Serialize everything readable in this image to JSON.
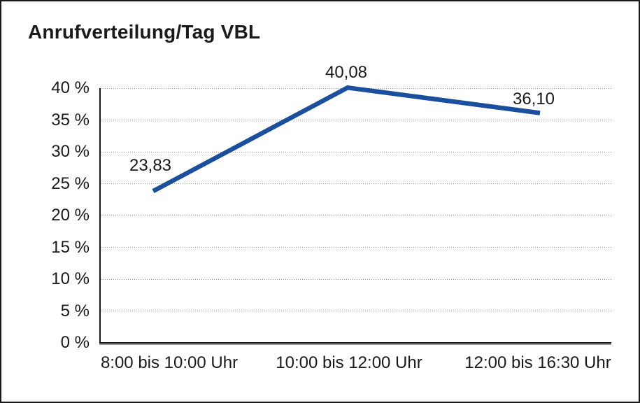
{
  "chart_data": {
    "type": "line",
    "title": "Anrufverteilung/Tag VBL",
    "categories": [
      "8:00 bis 10:00 Uhr",
      "10:00 bis 12:00 Uhr",
      "12:00 bis 16:30 Uhr"
    ],
    "values": [
      23.83,
      40.08,
      36.1
    ],
    "data_labels": [
      "23,83",
      "40,08",
      "36,10"
    ],
    "xlabel": "",
    "ylabel": "",
    "ylim": [
      0,
      40
    ],
    "ytick_step": 5,
    "ytick_labels": [
      "0 %",
      "5 %",
      "10 %",
      "15 %",
      "20 %",
      "25 %",
      "30 %",
      "35 %",
      "40 %"
    ],
    "grid": "horizontal dotted gridlines at every 5% tick",
    "legend_position": "none",
    "line_color": "#1A4F9E",
    "axis_color": "#1a1a1a",
    "grid_color": "#8f8f8f",
    "background_color": "#ffffff"
  }
}
